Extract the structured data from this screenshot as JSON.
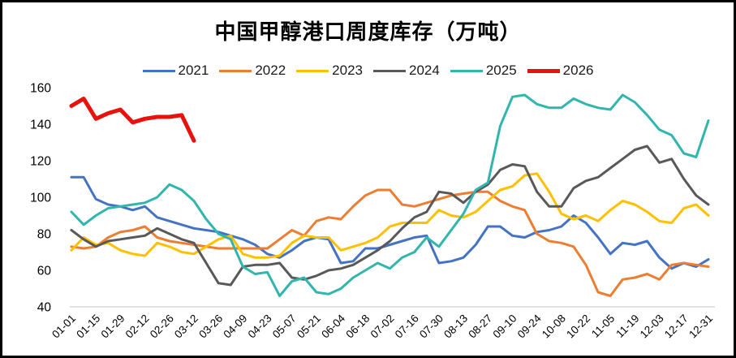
{
  "chart_data": {
    "type": "line",
    "title": "中国甲醇港口周度库存（万吨）",
    "xlabel": "",
    "ylabel": "",
    "ylim": [
      40,
      160
    ],
    "y_ticks": [
      40,
      60,
      80,
      100,
      120,
      140,
      160
    ],
    "grid": false,
    "legend_position": "top",
    "axis_line_color": "#D9D9D9",
    "text_color": "#000000",
    "x_tick_labels": [
      "01-01",
      "01-15",
      "01-29",
      "02-12",
      "02-26",
      "03-12",
      "03-26",
      "04-09",
      "04-23",
      "05-07",
      "05-21",
      "06-04",
      "06-18",
      "07-02",
      "07-16",
      "07-30",
      "08-13",
      "08-27",
      "09-10",
      "09-24",
      "10-08",
      "10-22",
      "11-05",
      "11-19",
      "12-03",
      "12-17",
      "12-31"
    ],
    "weeks_total": 53,
    "series": [
      {
        "name": "2021",
        "color": "#4472C4",
        "width": 3,
        "values": [
          111,
          111,
          99,
          96,
          95,
          93,
          95,
          89,
          87,
          85,
          83,
          82,
          81,
          79,
          77,
          74,
          69,
          67,
          71,
          76,
          78,
          77,
          64,
          65,
          72,
          72,
          74,
          76,
          78,
          79,
          64,
          65,
          67,
          74,
          84,
          84,
          79,
          78,
          81,
          82,
          84,
          90,
          86,
          78,
          69,
          75,
          74,
          76,
          67,
          61,
          64,
          62,
          66
        ]
      },
      {
        "name": "2022",
        "color": "#ED7D31",
        "width": 3,
        "values": [
          73,
          72,
          73,
          78,
          81,
          82,
          84,
          78,
          76,
          75,
          74,
          73,
          72,
          72,
          72,
          72,
          72,
          77,
          82,
          79,
          87,
          89,
          88,
          95,
          101,
          104,
          104,
          96,
          95,
          97,
          99,
          101,
          102,
          103,
          103,
          98,
          95,
          93,
          80,
          76,
          75,
          73,
          63,
          48,
          46,
          55,
          56,
          58,
          55,
          63,
          64,
          63,
          62
        ]
      },
      {
        "name": "2023",
        "color": "#FFC000",
        "width": 3,
        "values": [
          71,
          78,
          74,
          75,
          71,
          69,
          68,
          75,
          73,
          70,
          69,
          73,
          77,
          79,
          69,
          67,
          67,
          68,
          75,
          79,
          78,
          78,
          71,
          73,
          75,
          78,
          84,
          86,
          86,
          86,
          93,
          90,
          89,
          92,
          98,
          104,
          106,
          112,
          113,
          103,
          91,
          88,
          90,
          87,
          93,
          98,
          96,
          92,
          87,
          86,
          94,
          96,
          90
        ]
      },
      {
        "name": "2024",
        "color": "#595959",
        "width": 3,
        "values": [
          82,
          77,
          73,
          76,
          77,
          78,
          79,
          83,
          80,
          77,
          75,
          64,
          53,
          52,
          62,
          63,
          63,
          64,
          56,
          55,
          57,
          60,
          61,
          63,
          67,
          71,
          76,
          83,
          89,
          92,
          103,
          102,
          97,
          103,
          107,
          115,
          118,
          117,
          103,
          95,
          95,
          105,
          109,
          111,
          116,
          121,
          126,
          128,
          119,
          121,
          110,
          101,
          96
        ]
      },
      {
        "name": "2025",
        "color": "#31B6AE",
        "width": 3,
        "values": [
          92,
          85,
          90,
          94,
          95,
          96,
          97,
          100,
          107,
          104,
          98,
          88,
          80,
          77,
          62,
          58,
          59,
          46,
          54,
          56,
          48,
          47,
          50,
          56,
          60,
          64,
          61,
          67,
          70,
          78,
          73,
          82,
          91,
          104,
          108,
          139,
          155,
          156,
          151,
          149,
          149,
          154,
          151,
          149,
          148,
          156,
          152,
          145,
          137,
          134,
          124,
          122,
          142
        ]
      },
      {
        "name": "2026",
        "color": "#E8120C",
        "width": 5,
        "values": [
          150,
          154,
          143,
          146,
          148,
          141,
          143,
          144,
          144,
          145,
          131
        ]
      }
    ]
  }
}
